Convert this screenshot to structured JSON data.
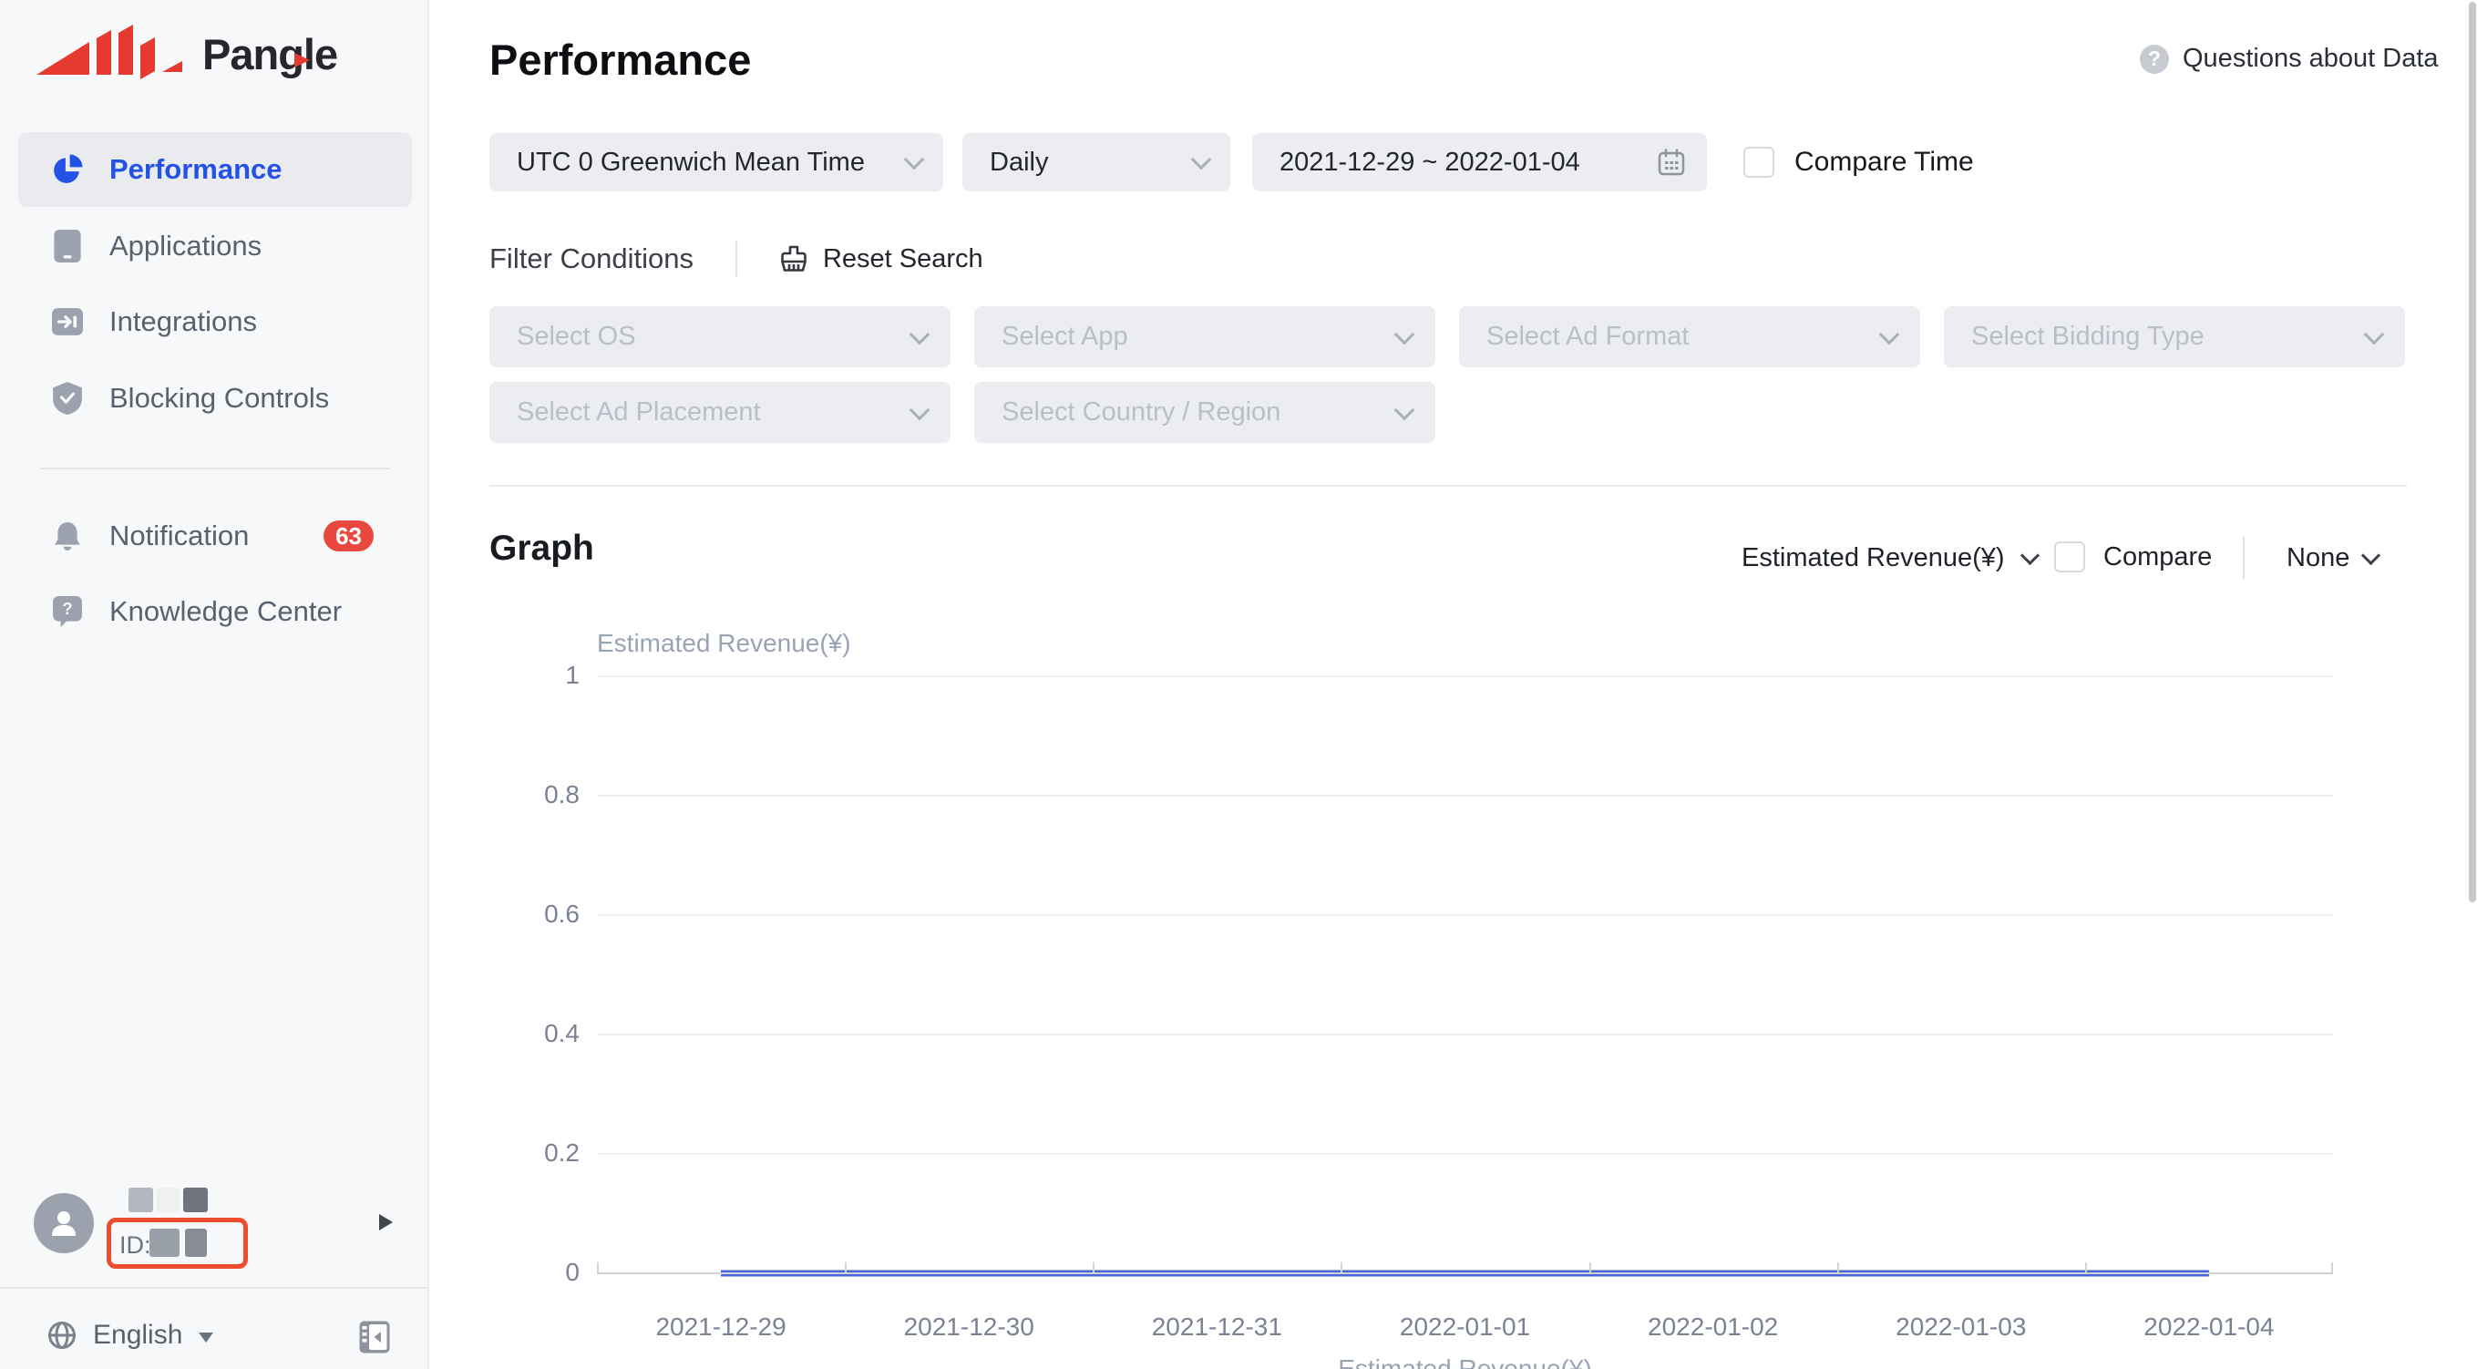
{
  "brand": {
    "name": "Pangle"
  },
  "sidebar": {
    "items": [
      {
        "label": "Performance"
      },
      {
        "label": "Applications"
      },
      {
        "label": "Integrations"
      },
      {
        "label": "Blocking Controls"
      },
      {
        "label": "Notification",
        "badge": "63"
      },
      {
        "label": "Knowledge Center"
      }
    ],
    "user": {
      "id_label": "ID:"
    },
    "language": "English"
  },
  "header": {
    "title": "Performance",
    "help_link": "Questions about Data"
  },
  "toolbar": {
    "timezone": "UTC 0 Greenwich Mean Time",
    "granularity": "Daily",
    "date_range": "2021-12-29 ~ 2022-01-04",
    "compare_time_label": "Compare Time"
  },
  "filters": {
    "title": "Filter Conditions",
    "reset_label": "Reset Search",
    "selects": {
      "os": "Select OS",
      "app": "Select App",
      "ad_format": "Select Ad Format",
      "bidding_type": "Select Bidding Type",
      "ad_placement": "Select Ad Placement",
      "country": "Select Country / Region"
    }
  },
  "graph": {
    "title": "Graph",
    "metric": "Estimated Revenue(¥)",
    "compare_label": "Compare",
    "dimension": "None"
  },
  "chart_data": {
    "type": "line",
    "x": [
      "2021-12-29",
      "2021-12-30",
      "2021-12-31",
      "2022-01-01",
      "2022-01-02",
      "2022-01-03",
      "2022-01-04"
    ],
    "series": [
      {
        "name": "Estimated Revenue(¥)",
        "values": [
          0,
          0,
          0,
          0,
          0,
          0,
          0
        ]
      }
    ],
    "title": "",
    "xlabel": "",
    "ylabel": "Estimated Revenue(¥)",
    "ylim": [
      0,
      1
    ],
    "yticks": [
      0,
      0.2,
      0.4,
      0.6,
      0.8,
      1
    ],
    "grid": true,
    "legend_position": "bottom",
    "line_color": "#4a64dc"
  },
  "colors": {
    "accent_blue": "#2452e6",
    "brand_red": "#e63a30",
    "badge_red": "#e8483d",
    "highlight_outline": "#ee4c2c"
  }
}
